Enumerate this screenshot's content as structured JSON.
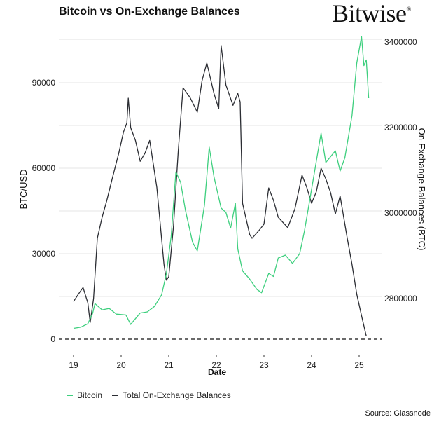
{
  "header": {
    "title": "Bitcoin vs On-Exchange Balances",
    "brand": "Bitwise",
    "brand_mark": "®"
  },
  "footer": {
    "source": "Source: Glassnode"
  },
  "colors": {
    "bitcoin": "#3ecf7e",
    "balances": "#2b2d33",
    "grid": "#e6e6e6",
    "zero_line": "#111111"
  },
  "chart_data": {
    "type": "line",
    "title": "Bitcoin vs On-Exchange Balances",
    "xlabel": "Date",
    "ylabel": "BTC/USD",
    "y2label": "On-Exchange Balances (BTC)",
    "x_ticks": [
      "19",
      "20",
      "21",
      "22",
      "23",
      "24",
      "25"
    ],
    "y_ticks": [
      0,
      30000,
      60000,
      90000
    ],
    "y_tick_labels": [
      "0",
      "30000",
      "60000",
      "90000"
    ],
    "y2_ticks": [
      2800000,
      3000000,
      3200000,
      3400000
    ],
    "y2_tick_labels": [
      "2800000",
      "3000000",
      "3200000",
      "3400000"
    ],
    "ylim": [
      0,
      105000
    ],
    "y2lim": [
      2705000,
      3400000
    ],
    "xlim": [
      2018.6,
      2025.45
    ],
    "grid": true,
    "zero_line": "dashed",
    "legend_position": "bottom-left",
    "legend": [
      "Bitcoin",
      "Total On-Exchange Balances"
    ],
    "series": [
      {
        "name": "Bitcoin",
        "axis": "left",
        "x": [
          2019.0,
          2019.15,
          2019.3,
          2019.4,
          2019.45,
          2019.6,
          2019.75,
          2019.9,
          2020.1,
          2020.2,
          2020.4,
          2020.55,
          2020.7,
          2020.85,
          2020.95,
          2021.05,
          2021.15,
          2021.25,
          2021.35,
          2021.5,
          2021.6,
          2021.75,
          2021.85,
          2021.95,
          2022.1,
          2022.2,
          2022.3,
          2022.4,
          2022.45,
          2022.55,
          2022.7,
          2022.85,
          2022.95,
          2023.1,
          2023.2,
          2023.3,
          2023.45,
          2023.6,
          2023.75,
          2023.85,
          2024.0,
          2024.2,
          2024.3,
          2024.5,
          2024.6,
          2024.7,
          2024.85,
          2024.95,
          2025.05,
          2025.1,
          2025.15,
          2025.2
        ],
        "values": [
          3800,
          4200,
          5400,
          9000,
          12500,
          10300,
          10800,
          8800,
          8500,
          5200,
          9200,
          9600,
          11500,
          15600,
          23000,
          36000,
          58700,
          55000,
          45300,
          34000,
          31000,
          47000,
          67400,
          57000,
          46000,
          44500,
          39000,
          47700,
          31700,
          24000,
          21100,
          17500,
          16300,
          23100,
          22000,
          28500,
          29500,
          26600,
          30000,
          37900,
          52600,
          72300,
          62000,
          66100,
          59000,
          63700,
          78500,
          96900,
          106200,
          96000,
          98000,
          84600
        ]
      },
      {
        "name": "Total On-Exchange Balances",
        "axis": "right",
        "x": [
          2019.0,
          2019.1,
          2019.2,
          2019.3,
          2019.35,
          2019.42,
          2019.5,
          2019.6,
          2019.7,
          2019.8,
          2019.95,
          2020.05,
          2020.12,
          2020.15,
          2020.2,
          2020.3,
          2020.4,
          2020.5,
          2020.6,
          2020.75,
          2020.9,
          2020.95,
          2021.0,
          2021.1,
          2021.2,
          2021.3,
          2021.45,
          2021.6,
          2021.7,
          2021.8,
          2021.95,
          2022.05,
          2022.1,
          2022.2,
          2022.35,
          2022.45,
          2022.5,
          2022.55,
          2022.7,
          2022.75,
          2022.9,
          2023.0,
          2023.1,
          2023.2,
          2023.3,
          2023.5,
          2023.65,
          2023.8,
          2023.9,
          2024.0,
          2024.1,
          2024.2,
          2024.3,
          2024.4,
          2024.5,
          2024.6,
          2024.75,
          2024.85,
          2024.95,
          2025.05,
          2025.15
        ],
        "values": [
          2793000,
          2810000,
          2826000,
          2790000,
          2744000,
          2800000,
          2941000,
          2990000,
          3030000,
          3075000,
          3140000,
          3190000,
          3211000,
          3269000,
          3200000,
          3170000,
          3121000,
          3140000,
          3170000,
          3060000,
          2880000,
          2843000,
          2851000,
          2970000,
          3146000,
          3293000,
          3270000,
          3236000,
          3310000,
          3351000,
          3280000,
          3244000,
          3392000,
          3300000,
          3252000,
          3280000,
          3260000,
          3023000,
          2950000,
          2941000,
          2960000,
          2974000,
          3059000,
          3030000,
          2990000,
          2966000,
          3010000,
          3089000,
          3060000,
          3023000,
          3050000,
          3105000,
          3080000,
          3048000,
          2998000,
          3040000,
          2941000,
          2880000,
          2810000,
          2760000,
          2712000
        ]
      }
    ]
  }
}
